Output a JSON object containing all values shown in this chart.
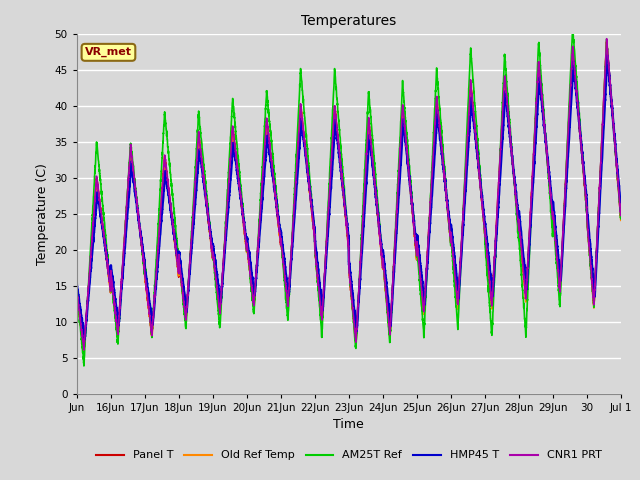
{
  "title": "Temperatures",
  "xlabel": "Time",
  "ylabel": "Temperature (C)",
  "ylim": [
    0,
    50
  ],
  "bg_color": "#d8d8d8",
  "annotation_text": "VR_met",
  "annotation_box_color": "#ffff99",
  "annotation_border_color": "#8B6914",
  "legend_labels": [
    "Panel T",
    "Old Ref Temp",
    "AM25T Ref",
    "HMP45 T",
    "CNR1 PRT"
  ],
  "legend_colors": [
    "#cc0000",
    "#ff8800",
    "#00cc00",
    "#0000cc",
    "#aa00aa"
  ],
  "line_widths": [
    1.2,
    1.2,
    1.2,
    1.8,
    1.2
  ],
  "x_tick_labels": [
    "Jun",
    "16Jun",
    "17Jun",
    "18Jun",
    "19Jun",
    "20Jun",
    "21Jun",
    "22Jun",
    "23Jun",
    "24Jun",
    "25Jun",
    "26Jun",
    "27Jun",
    "28Jun",
    "29Jun",
    "30",
    "Jul 1"
  ],
  "n_days": 16,
  "points_per_day": 288
}
